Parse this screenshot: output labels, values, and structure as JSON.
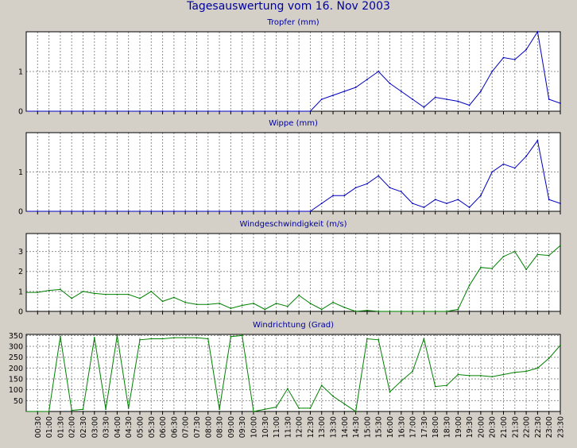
{
  "title": "Tagesauswertung vom 16. Nov 2003",
  "time_labels": [
    "00:30",
    "01:00",
    "01:30",
    "02:00",
    "02:30",
    "03:00",
    "03:30",
    "04:00",
    "04:30",
    "05:00",
    "05:30",
    "06:00",
    "06:30",
    "07:00",
    "07:30",
    "08:00",
    "08:30",
    "09:00",
    "09:30",
    "10:00",
    "10:30",
    "11:00",
    "11:30",
    "12:00",
    "12:30",
    "13:00",
    "13:30",
    "14:00",
    "14:30",
    "15:00",
    "15:30",
    "16:00",
    "16:30",
    "17:00",
    "17:30",
    "18:00",
    "18:30",
    "19:00",
    "19:30",
    "20:00",
    "20:30",
    "21:00",
    "21:30",
    "22:00",
    "22:30",
    "23:00",
    "23:30"
  ],
  "chart_data": [
    {
      "type": "line",
      "title": "Tropfer (mm)",
      "color": "#0000c0",
      "ylim": [
        0,
        2
      ],
      "yticks": [
        0,
        1
      ],
      "x": [
        "00:30",
        "01:00",
        "01:30",
        "02:00",
        "02:30",
        "03:00",
        "03:30",
        "04:00",
        "04:30",
        "05:00",
        "05:30",
        "06:00",
        "06:30",
        "07:00",
        "07:30",
        "08:00",
        "08:30",
        "09:00",
        "09:30",
        "10:00",
        "10:30",
        "11:00",
        "11:30",
        "12:00",
        "12:30",
        "13:00",
        "13:30",
        "14:00",
        "14:30",
        "15:00",
        "15:30",
        "16:00",
        "16:30",
        "17:00",
        "17:30",
        "18:00",
        "18:30",
        "19:00",
        "19:30",
        "20:00",
        "20:30",
        "21:00",
        "21:30",
        "22:00",
        "22:30",
        "23:00",
        "23:30"
      ],
      "values": [
        0,
        0,
        0,
        0,
        0,
        0,
        0,
        0,
        0,
        0,
        0,
        0,
        0,
        0,
        0,
        0,
        0,
        0,
        0,
        0,
        0,
        0,
        0,
        0,
        0,
        0.3,
        0.4,
        0.5,
        0.6,
        0.8,
        1.0,
        0.7,
        0.5,
        0.3,
        0.1,
        0.35,
        0.3,
        0.25,
        0.15,
        0.5,
        1.0,
        1.35,
        1.3,
        1.55,
        2.0,
        0.3,
        0.2
      ]
    },
    {
      "type": "line",
      "title": "Wippe (mm)",
      "color": "#0000c0",
      "ylim": [
        0,
        2
      ],
      "yticks": [
        0,
        1
      ],
      "x": [
        "00:30",
        "01:00",
        "01:30",
        "02:00",
        "02:30",
        "03:00",
        "03:30",
        "04:00",
        "04:30",
        "05:00",
        "05:30",
        "06:00",
        "06:30",
        "07:00",
        "07:30",
        "08:00",
        "08:30",
        "09:00",
        "09:30",
        "10:00",
        "10:30",
        "11:00",
        "11:30",
        "12:00",
        "12:30",
        "13:00",
        "13:30",
        "14:00",
        "14:30",
        "15:00",
        "15:30",
        "16:00",
        "16:30",
        "17:00",
        "17:30",
        "18:00",
        "18:30",
        "19:00",
        "19:30",
        "20:00",
        "20:30",
        "21:00",
        "21:30",
        "22:00",
        "22:30",
        "23:00",
        "23:30"
      ],
      "values": [
        0,
        0,
        0,
        0,
        0,
        0,
        0,
        0,
        0,
        0,
        0,
        0,
        0,
        0,
        0,
        0,
        0,
        0,
        0,
        0,
        0,
        0,
        0,
        0,
        0,
        0.2,
        0.4,
        0.4,
        0.6,
        0.7,
        0.9,
        0.6,
        0.5,
        0.2,
        0.1,
        0.3,
        0.2,
        0.3,
        0.1,
        0.4,
        1.0,
        1.2,
        1.1,
        1.4,
        1.8,
        0.3,
        0.2
      ]
    },
    {
      "type": "line",
      "title": "Windgeschwindigkeit (m/s)",
      "color": "#008000",
      "ylim": [
        0,
        3.9
      ],
      "yticks": [
        0,
        1,
        2,
        3
      ],
      "x": [
        "00:30",
        "01:00",
        "01:30",
        "02:00",
        "02:30",
        "03:00",
        "03:30",
        "04:00",
        "04:30",
        "05:00",
        "05:30",
        "06:00",
        "06:30",
        "07:00",
        "07:30",
        "08:00",
        "08:30",
        "09:00",
        "09:30",
        "10:00",
        "10:30",
        "11:00",
        "11:30",
        "12:00",
        "12:30",
        "13:00",
        "13:30",
        "14:00",
        "14:30",
        "15:00",
        "15:30",
        "16:00",
        "16:30",
        "17:00",
        "17:30",
        "18:00",
        "18:30",
        "19:00",
        "19:30",
        "20:00",
        "20:30",
        "21:00",
        "21:30",
        "22:00",
        "22:30",
        "23:00",
        "23:30"
      ],
      "values": [
        0.95,
        1.05,
        1.1,
        0.65,
        1.0,
        0.9,
        0.85,
        0.85,
        0.85,
        0.65,
        1.0,
        0.5,
        0.7,
        0.45,
        0.35,
        0.35,
        0.4,
        0.15,
        0.3,
        0.4,
        0.1,
        0.4,
        0.25,
        0.8,
        0.4,
        0.1,
        0.45,
        0.2,
        0,
        0.05,
        0,
        0,
        0,
        0,
        0,
        0,
        0,
        0.1,
        1.3,
        2.2,
        2.15,
        2.75,
        3.0,
        2.1,
        2.85,
        2.8,
        3.3
      ]
    },
    {
      "type": "line",
      "title": "Windrichtung (Grad)",
      "color": "#008000",
      "ylim": [
        0,
        355
      ],
      "yticks": [
        50,
        100,
        150,
        200,
        250,
        300,
        350
      ],
      "x": [
        "00:30",
        "01:00",
        "01:30",
        "02:00",
        "02:30",
        "03:00",
        "03:30",
        "04:00",
        "04:30",
        "05:00",
        "05:30",
        "06:00",
        "06:30",
        "07:00",
        "07:30",
        "08:00",
        "08:30",
        "09:00",
        "09:30",
        "10:00",
        "10:30",
        "11:00",
        "11:30",
        "12:00",
        "12:30",
        "13:00",
        "13:30",
        "14:00",
        "14:30",
        "15:00",
        "15:30",
        "16:00",
        "16:30",
        "17:00",
        "17:30",
        "18:00",
        "18:30",
        "19:00",
        "19:30",
        "20:00",
        "20:30",
        "21:00",
        "21:30",
        "22:00",
        "22:30",
        "23:00",
        "23:30"
      ],
      "values": [
        0,
        0,
        345,
        5,
        10,
        340,
        10,
        350,
        15,
        330,
        335,
        335,
        340,
        340,
        340,
        335,
        10,
        345,
        350,
        0,
        10,
        20,
        105,
        15,
        15,
        120,
        70,
        35,
        0,
        335,
        330,
        90,
        140,
        185,
        335,
        115,
        120,
        170,
        165,
        165,
        160,
        170,
        180,
        185,
        200,
        245,
        305
      ]
    }
  ]
}
